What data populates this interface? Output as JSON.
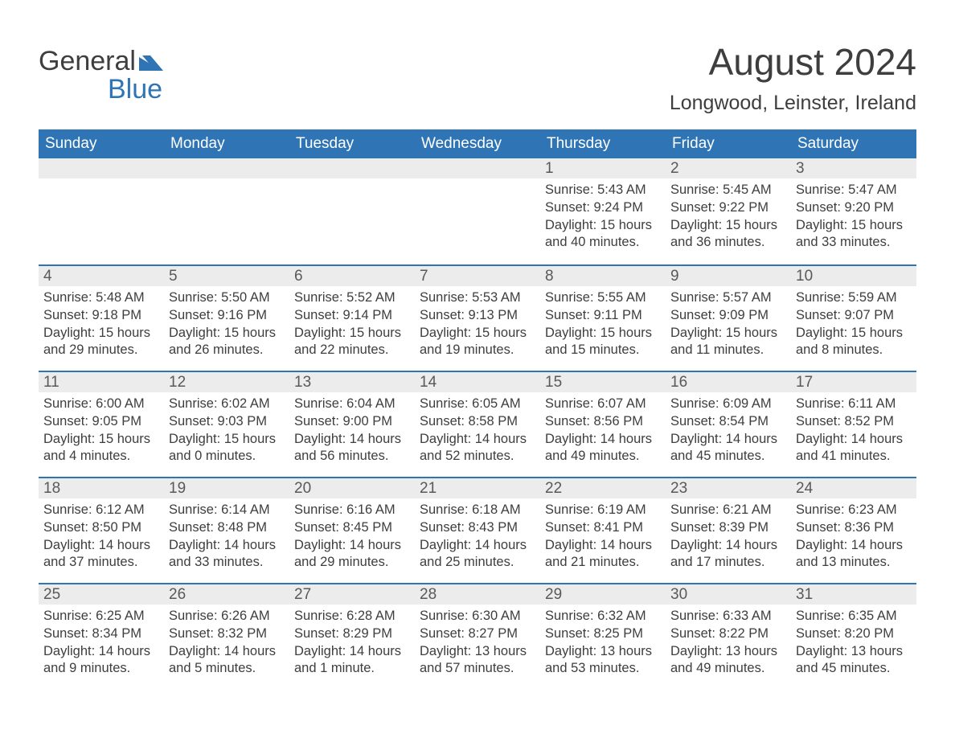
{
  "logo": {
    "word1": "General",
    "word2": "Blue"
  },
  "header": {
    "month_title": "August 2024",
    "location": "Longwood, Leinster, Ireland"
  },
  "colors": {
    "brand_blue": "#2f75b5",
    "text_dark": "#3e3e3e",
    "daynum_bg": "#ececec",
    "daynum_text": "#595959",
    "page_bg": "#ffffff",
    "header_text": "#ffffff"
  },
  "calendar": {
    "type": "table",
    "columns": [
      "Sunday",
      "Monday",
      "Tuesday",
      "Wednesday",
      "Thursday",
      "Friday",
      "Saturday"
    ],
    "weeks": [
      [
        {
          "day": "",
          "sunrise": "",
          "sunset": "",
          "daylight": ""
        },
        {
          "day": "",
          "sunrise": "",
          "sunset": "",
          "daylight": ""
        },
        {
          "day": "",
          "sunrise": "",
          "sunset": "",
          "daylight": ""
        },
        {
          "day": "",
          "sunrise": "",
          "sunset": "",
          "daylight": ""
        },
        {
          "day": "1",
          "sunrise": "Sunrise: 5:43 AM",
          "sunset": "Sunset: 9:24 PM",
          "daylight": "Daylight: 15 hours and 40 minutes."
        },
        {
          "day": "2",
          "sunrise": "Sunrise: 5:45 AM",
          "sunset": "Sunset: 9:22 PM",
          "daylight": "Daylight: 15 hours and 36 minutes."
        },
        {
          "day": "3",
          "sunrise": "Sunrise: 5:47 AM",
          "sunset": "Sunset: 9:20 PM",
          "daylight": "Daylight: 15 hours and 33 minutes."
        }
      ],
      [
        {
          "day": "4",
          "sunrise": "Sunrise: 5:48 AM",
          "sunset": "Sunset: 9:18 PM",
          "daylight": "Daylight: 15 hours and 29 minutes."
        },
        {
          "day": "5",
          "sunrise": "Sunrise: 5:50 AM",
          "sunset": "Sunset: 9:16 PM",
          "daylight": "Daylight: 15 hours and 26 minutes."
        },
        {
          "day": "6",
          "sunrise": "Sunrise: 5:52 AM",
          "sunset": "Sunset: 9:14 PM",
          "daylight": "Daylight: 15 hours and 22 minutes."
        },
        {
          "day": "7",
          "sunrise": "Sunrise: 5:53 AM",
          "sunset": "Sunset: 9:13 PM",
          "daylight": "Daylight: 15 hours and 19 minutes."
        },
        {
          "day": "8",
          "sunrise": "Sunrise: 5:55 AM",
          "sunset": "Sunset: 9:11 PM",
          "daylight": "Daylight: 15 hours and 15 minutes."
        },
        {
          "day": "9",
          "sunrise": "Sunrise: 5:57 AM",
          "sunset": "Sunset: 9:09 PM",
          "daylight": "Daylight: 15 hours and 11 minutes."
        },
        {
          "day": "10",
          "sunrise": "Sunrise: 5:59 AM",
          "sunset": "Sunset: 9:07 PM",
          "daylight": "Daylight: 15 hours and 8 minutes."
        }
      ],
      [
        {
          "day": "11",
          "sunrise": "Sunrise: 6:00 AM",
          "sunset": "Sunset: 9:05 PM",
          "daylight": "Daylight: 15 hours and 4 minutes."
        },
        {
          "day": "12",
          "sunrise": "Sunrise: 6:02 AM",
          "sunset": "Sunset: 9:03 PM",
          "daylight": "Daylight: 15 hours and 0 minutes."
        },
        {
          "day": "13",
          "sunrise": "Sunrise: 6:04 AM",
          "sunset": "Sunset: 9:00 PM",
          "daylight": "Daylight: 14 hours and 56 minutes."
        },
        {
          "day": "14",
          "sunrise": "Sunrise: 6:05 AM",
          "sunset": "Sunset: 8:58 PM",
          "daylight": "Daylight: 14 hours and 52 minutes."
        },
        {
          "day": "15",
          "sunrise": "Sunrise: 6:07 AM",
          "sunset": "Sunset: 8:56 PM",
          "daylight": "Daylight: 14 hours and 49 minutes."
        },
        {
          "day": "16",
          "sunrise": "Sunrise: 6:09 AM",
          "sunset": "Sunset: 8:54 PM",
          "daylight": "Daylight: 14 hours and 45 minutes."
        },
        {
          "day": "17",
          "sunrise": "Sunrise: 6:11 AM",
          "sunset": "Sunset: 8:52 PM",
          "daylight": "Daylight: 14 hours and 41 minutes."
        }
      ],
      [
        {
          "day": "18",
          "sunrise": "Sunrise: 6:12 AM",
          "sunset": "Sunset: 8:50 PM",
          "daylight": "Daylight: 14 hours and 37 minutes."
        },
        {
          "day": "19",
          "sunrise": "Sunrise: 6:14 AM",
          "sunset": "Sunset: 8:48 PM",
          "daylight": "Daylight: 14 hours and 33 minutes."
        },
        {
          "day": "20",
          "sunrise": "Sunrise: 6:16 AM",
          "sunset": "Sunset: 8:45 PM",
          "daylight": "Daylight: 14 hours and 29 minutes."
        },
        {
          "day": "21",
          "sunrise": "Sunrise: 6:18 AM",
          "sunset": "Sunset: 8:43 PM",
          "daylight": "Daylight: 14 hours and 25 minutes."
        },
        {
          "day": "22",
          "sunrise": "Sunrise: 6:19 AM",
          "sunset": "Sunset: 8:41 PM",
          "daylight": "Daylight: 14 hours and 21 minutes."
        },
        {
          "day": "23",
          "sunrise": "Sunrise: 6:21 AM",
          "sunset": "Sunset: 8:39 PM",
          "daylight": "Daylight: 14 hours and 17 minutes."
        },
        {
          "day": "24",
          "sunrise": "Sunrise: 6:23 AM",
          "sunset": "Sunset: 8:36 PM",
          "daylight": "Daylight: 14 hours and 13 minutes."
        }
      ],
      [
        {
          "day": "25",
          "sunrise": "Sunrise: 6:25 AM",
          "sunset": "Sunset: 8:34 PM",
          "daylight": "Daylight: 14 hours and 9 minutes."
        },
        {
          "day": "26",
          "sunrise": "Sunrise: 6:26 AM",
          "sunset": "Sunset: 8:32 PM",
          "daylight": "Daylight: 14 hours and 5 minutes."
        },
        {
          "day": "27",
          "sunrise": "Sunrise: 6:28 AM",
          "sunset": "Sunset: 8:29 PM",
          "daylight": "Daylight: 14 hours and 1 minute."
        },
        {
          "day": "28",
          "sunrise": "Sunrise: 6:30 AM",
          "sunset": "Sunset: 8:27 PM",
          "daylight": "Daylight: 13 hours and 57 minutes."
        },
        {
          "day": "29",
          "sunrise": "Sunrise: 6:32 AM",
          "sunset": "Sunset: 8:25 PM",
          "daylight": "Daylight: 13 hours and 53 minutes."
        },
        {
          "day": "30",
          "sunrise": "Sunrise: 6:33 AM",
          "sunset": "Sunset: 8:22 PM",
          "daylight": "Daylight: 13 hours and 49 minutes."
        },
        {
          "day": "31",
          "sunrise": "Sunrise: 6:35 AM",
          "sunset": "Sunset: 8:20 PM",
          "daylight": "Daylight: 13 hours and 45 minutes."
        }
      ]
    ]
  }
}
